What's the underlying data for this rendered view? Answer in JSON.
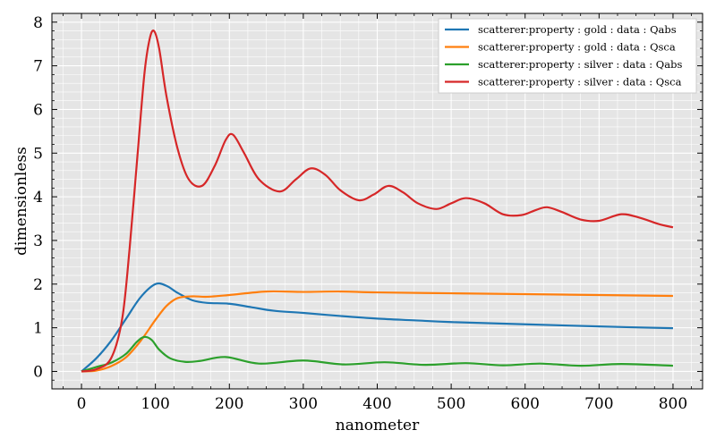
{
  "chart_data": {
    "type": "line",
    "title": "",
    "xlabel": "nanometer",
    "ylabel": "dimensionless",
    "xlim": [
      -40,
      840
    ],
    "ylim": [
      -0.4,
      8.2
    ],
    "xticks": [
      0,
      100,
      200,
      300,
      400,
      500,
      600,
      700,
      800
    ],
    "yticks": [
      0,
      1,
      2,
      3,
      4,
      5,
      6,
      7,
      8
    ],
    "grid": true,
    "legend_position": "top-right",
    "series": [
      {
        "name": "scatterer:property : gold : data : Qabs",
        "color": "#1f77b4",
        "x": [
          0,
          20,
          40,
          60,
          80,
          100,
          115,
          130,
          150,
          170,
          200,
          230,
          260,
          300,
          350,
          400,
          450,
          500,
          600,
          700,
          800
        ],
        "y": [
          0,
          0.3,
          0.7,
          1.2,
          1.7,
          2.0,
          1.96,
          1.8,
          1.63,
          1.57,
          1.55,
          1.47,
          1.39,
          1.34,
          1.27,
          1.21,
          1.17,
          1.13,
          1.08,
          1.03,
          0.99
        ]
      },
      {
        "name": "scatterer:property : gold : data : Qsca",
        "color": "#ff7f0e",
        "x": [
          0,
          20,
          40,
          60,
          80,
          100,
          115,
          130,
          150,
          170,
          200,
          250,
          300,
          350,
          400,
          500,
          600,
          700,
          800
        ],
        "y": [
          0,
          0.02,
          0.12,
          0.32,
          0.7,
          1.18,
          1.5,
          1.68,
          1.72,
          1.71,
          1.75,
          1.83,
          1.82,
          1.83,
          1.81,
          1.79,
          1.77,
          1.75,
          1.73
        ]
      },
      {
        "name": "scatterer:property : silver : data : Qabs",
        "color": "#2ca02c",
        "x": [
          0,
          20,
          40,
          60,
          75,
          85,
          95,
          105,
          120,
          140,
          160,
          195,
          240,
          300,
          355,
          410,
          465,
          520,
          570,
          620,
          675,
          730,
          800
        ],
        "y": [
          0,
          0.1,
          0.2,
          0.4,
          0.68,
          0.79,
          0.72,
          0.5,
          0.3,
          0.22,
          0.24,
          0.33,
          0.18,
          0.25,
          0.16,
          0.21,
          0.15,
          0.19,
          0.14,
          0.18,
          0.13,
          0.17,
          0.13
        ]
      },
      {
        "name": "scatterer:property : silver : data : Qsca",
        "color": "#d62728",
        "x": [
          0,
          20,
          40,
          55,
          65,
          75,
          85,
          92,
          98,
          105,
          115,
          130,
          145,
          163,
          180,
          195,
          205,
          220,
          240,
          268,
          290,
          310,
          330,
          350,
          375,
          395,
          415,
          435,
          455,
          480,
          500,
          520,
          545,
          570,
          595,
          615,
          630,
          650,
          675,
          700,
          730,
          755,
          780,
          800
        ],
        "y": [
          0,
          0.05,
          0.3,
          1.2,
          2.8,
          4.8,
          6.8,
          7.6,
          7.8,
          7.4,
          6.3,
          5.1,
          4.4,
          4.25,
          4.7,
          5.3,
          5.42,
          5.0,
          4.4,
          4.12,
          4.4,
          4.65,
          4.5,
          4.15,
          3.92,
          4.05,
          4.25,
          4.1,
          3.85,
          3.72,
          3.85,
          3.97,
          3.85,
          3.6,
          3.58,
          3.7,
          3.76,
          3.65,
          3.48,
          3.45,
          3.6,
          3.52,
          3.38,
          3.3
        ]
      }
    ]
  }
}
